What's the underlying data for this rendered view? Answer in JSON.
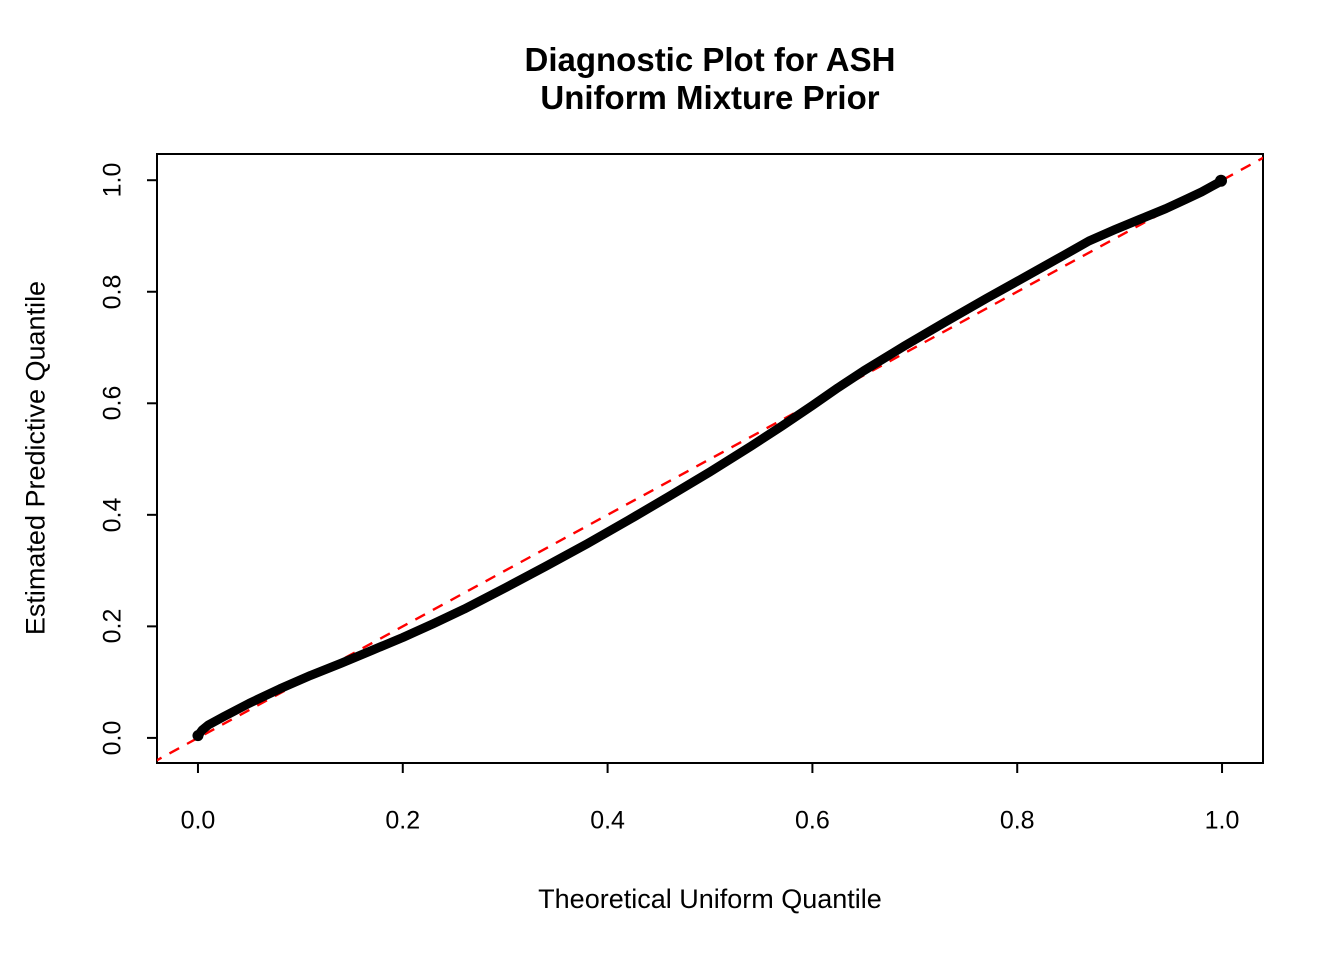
{
  "figure": {
    "background_color": "#FFFFFF",
    "foreground_color": "#000000"
  },
  "chart_data": {
    "type": "scatter",
    "title_lines": [
      "Diagnostic Plot for ASH",
      "Uniform Mixture Prior"
    ],
    "xlabel": "Theoretical Uniform Quantile",
    "ylabel": "Estimated Predictive Quantile",
    "xlim": [
      -0.04,
      1.04
    ],
    "ylim": [
      -0.045,
      1.047
    ],
    "grid": false,
    "legend": null,
    "x_ticks": {
      "values": [
        0.0,
        0.2,
        0.4,
        0.6,
        0.8,
        1.0
      ],
      "labels": [
        "0.0",
        "0.2",
        "0.4",
        "0.6",
        "0.8",
        "1.0"
      ]
    },
    "y_ticks": {
      "values": [
        0.0,
        0.2,
        0.4,
        0.6,
        0.8,
        1.0
      ],
      "labels": [
        "0.0",
        "0.2",
        "0.4",
        "0.6",
        "0.8",
        "1.0"
      ]
    },
    "series": [
      {
        "name": "estimated-predictive-quantile-curve",
        "style": "thick-point-curve",
        "color": "#000000",
        "points": [
          [
            0.0,
            0.004
          ],
          [
            0.004,
            0.014
          ],
          [
            0.01,
            0.023
          ],
          [
            0.025,
            0.038
          ],
          [
            0.05,
            0.062
          ],
          [
            0.08,
            0.088
          ],
          [
            0.11,
            0.112
          ],
          [
            0.14,
            0.134
          ],
          [
            0.17,
            0.157
          ],
          [
            0.2,
            0.18
          ],
          [
            0.23,
            0.205
          ],
          [
            0.26,
            0.231
          ],
          [
            0.3,
            0.269
          ],
          [
            0.34,
            0.308
          ],
          [
            0.38,
            0.348
          ],
          [
            0.42,
            0.39
          ],
          [
            0.46,
            0.433
          ],
          [
            0.5,
            0.477
          ],
          [
            0.54,
            0.523
          ],
          [
            0.57,
            0.559
          ],
          [
            0.6,
            0.596
          ],
          [
            0.625,
            0.628
          ],
          [
            0.65,
            0.658
          ],
          [
            0.69,
            0.703
          ],
          [
            0.73,
            0.746
          ],
          [
            0.77,
            0.788
          ],
          [
            0.81,
            0.829
          ],
          [
            0.845,
            0.865
          ],
          [
            0.87,
            0.891
          ],
          [
            0.895,
            0.911
          ],
          [
            0.92,
            0.93
          ],
          [
            0.945,
            0.949
          ],
          [
            0.965,
            0.966
          ],
          [
            0.98,
            0.979
          ],
          [
            0.99,
            0.989
          ],
          [
            0.996,
            0.995
          ],
          [
            0.999,
            0.999
          ]
        ]
      },
      {
        "name": "identity-reference-line",
        "style": "dashed-line",
        "color": "#FF0000",
        "from": [
          -0.045,
          -0.045
        ],
        "to": [
          1.047,
          1.047
        ]
      }
    ]
  }
}
